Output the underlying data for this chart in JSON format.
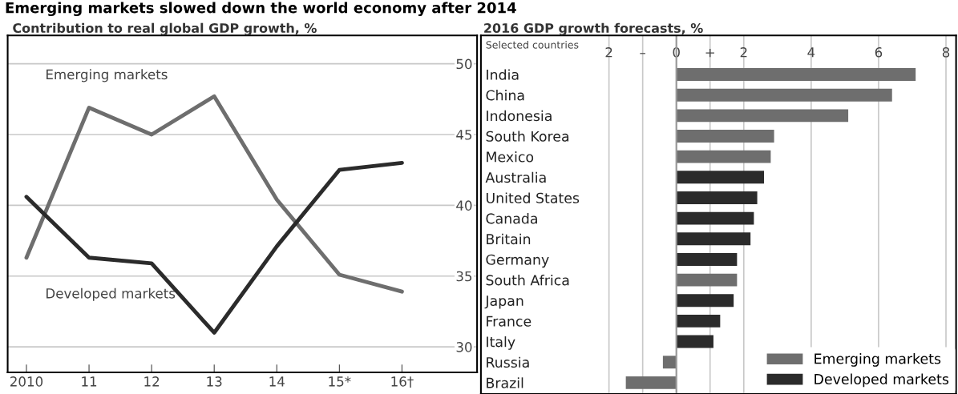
{
  "chart_data": [
    {
      "type": "line",
      "title": "Contribution to real global GDP growth, %",
      "annotations": [
        "Emerging markets slowed down the world economy after 2014"
      ],
      "categories": [
        "2010",
        "11",
        "12",
        "13",
        "14",
        "15*",
        "16†"
      ],
      "series": [
        {
          "name": "Emerging markets",
          "color": "#6e6e6e",
          "values": [
            36.3,
            46.9,
            45.0,
            47.7,
            40.4,
            35.1,
            33.9
          ]
        },
        {
          "name": "Developed markets",
          "color": "#2b2b2b",
          "values": [
            40.6,
            36.3,
            35.9,
            31.0,
            37.1,
            42.5,
            43.0
          ]
        }
      ],
      "ylim": [
        28.2,
        52
      ],
      "yticks": [
        30,
        35,
        40,
        45,
        50
      ],
      "grid": "y",
      "marker": "none",
      "line_style": "solid"
    },
    {
      "type": "bar",
      "orientation": "horizontal",
      "title": "2016 GDP growth forecasts, %",
      "subtitle": "Selected countries",
      "categories": [
        "India",
        "China",
        "Indonesia",
        "South Korea",
        "Mexico",
        "Australia",
        "United States",
        "Canada",
        "Britain",
        "Germany",
        "South Africa",
        "Japan",
        "France",
        "Italy",
        "Russia",
        "Brazil"
      ],
      "series": [
        {
          "name": "Emerging markets",
          "color": "#6e6e6e",
          "values": [
            7.1,
            6.4,
            5.1,
            2.9,
            2.8,
            null,
            null,
            null,
            null,
            null,
            1.8,
            null,
            null,
            null,
            -0.4,
            -1.5
          ]
        },
        {
          "name": "Developed markets",
          "color": "#2b2b2b",
          "values": [
            null,
            null,
            null,
            null,
            null,
            2.6,
            2.4,
            2.3,
            2.2,
            1.8,
            null,
            1.7,
            1.3,
            1.1,
            null,
            null
          ]
        }
      ],
      "xlim": [
        -5.8,
        8.3
      ],
      "xticks": [
        {
          "value": -2,
          "label": "2"
        },
        {
          "value": -1,
          "label": "–"
        },
        0,
        {
          "value": 1,
          "label": "+"
        },
        2,
        4,
        6,
        8
      ],
      "grid": "x",
      "legend": "bottom right"
    }
  ]
}
